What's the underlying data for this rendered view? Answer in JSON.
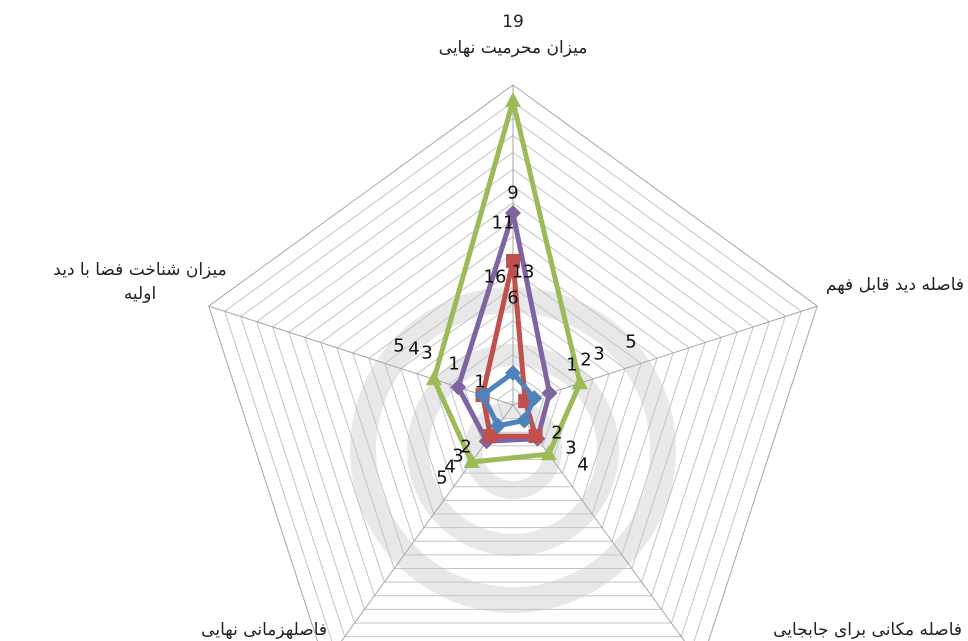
{
  "chart_data": {
    "type": "radar",
    "title": "",
    "grid": true,
    "legend": "none",
    "axes": [
      {
        "label_lines": [
          "19",
          "میزان محرمیت  نهایی"
        ]
      },
      {
        "label_lines": [
          "فاصله دید قابل فهم"
        ]
      },
      {
        "label_lines": [
          "فاصله مکانی برای جابجایی"
        ]
      },
      {
        "label_lines": [
          "فاصلهزمانی نهایی"
        ]
      },
      {
        "label_lines": [
          "میزان شناخت فضا با دید",
          "اولیه"
        ]
      }
    ],
    "tick_labels": [
      [
        "16",
        "13",
        "11",
        "9",
        "6"
      ],
      [
        "5",
        "3",
        "2",
        "1"
      ],
      [
        "4",
        "3",
        "2"
      ],
      [
        "5",
        "4",
        "3",
        "2"
      ],
      [
        "5",
        "4",
        "3",
        "1",
        "1"
      ]
    ],
    "series": [
      {
        "color": "#9bbb59",
        "marker": "triangle",
        "values": [
          0.95,
          0.22,
          0.19,
          0.22,
          0.26
        ]
      },
      {
        "color": "#8064a2",
        "marker": "diamond",
        "values": [
          0.6,
          0.12,
          0.13,
          0.14,
          0.18
        ]
      },
      {
        "color": "#c0504d",
        "marker": "square",
        "values": [
          0.45,
          0.04,
          0.12,
          0.12,
          0.1
        ]
      },
      {
        "color": "#4f81bd",
        "marker": "diamond",
        "values": [
          0.1,
          0.07,
          0.06,
          0.08,
          0.1
        ]
      }
    ]
  }
}
